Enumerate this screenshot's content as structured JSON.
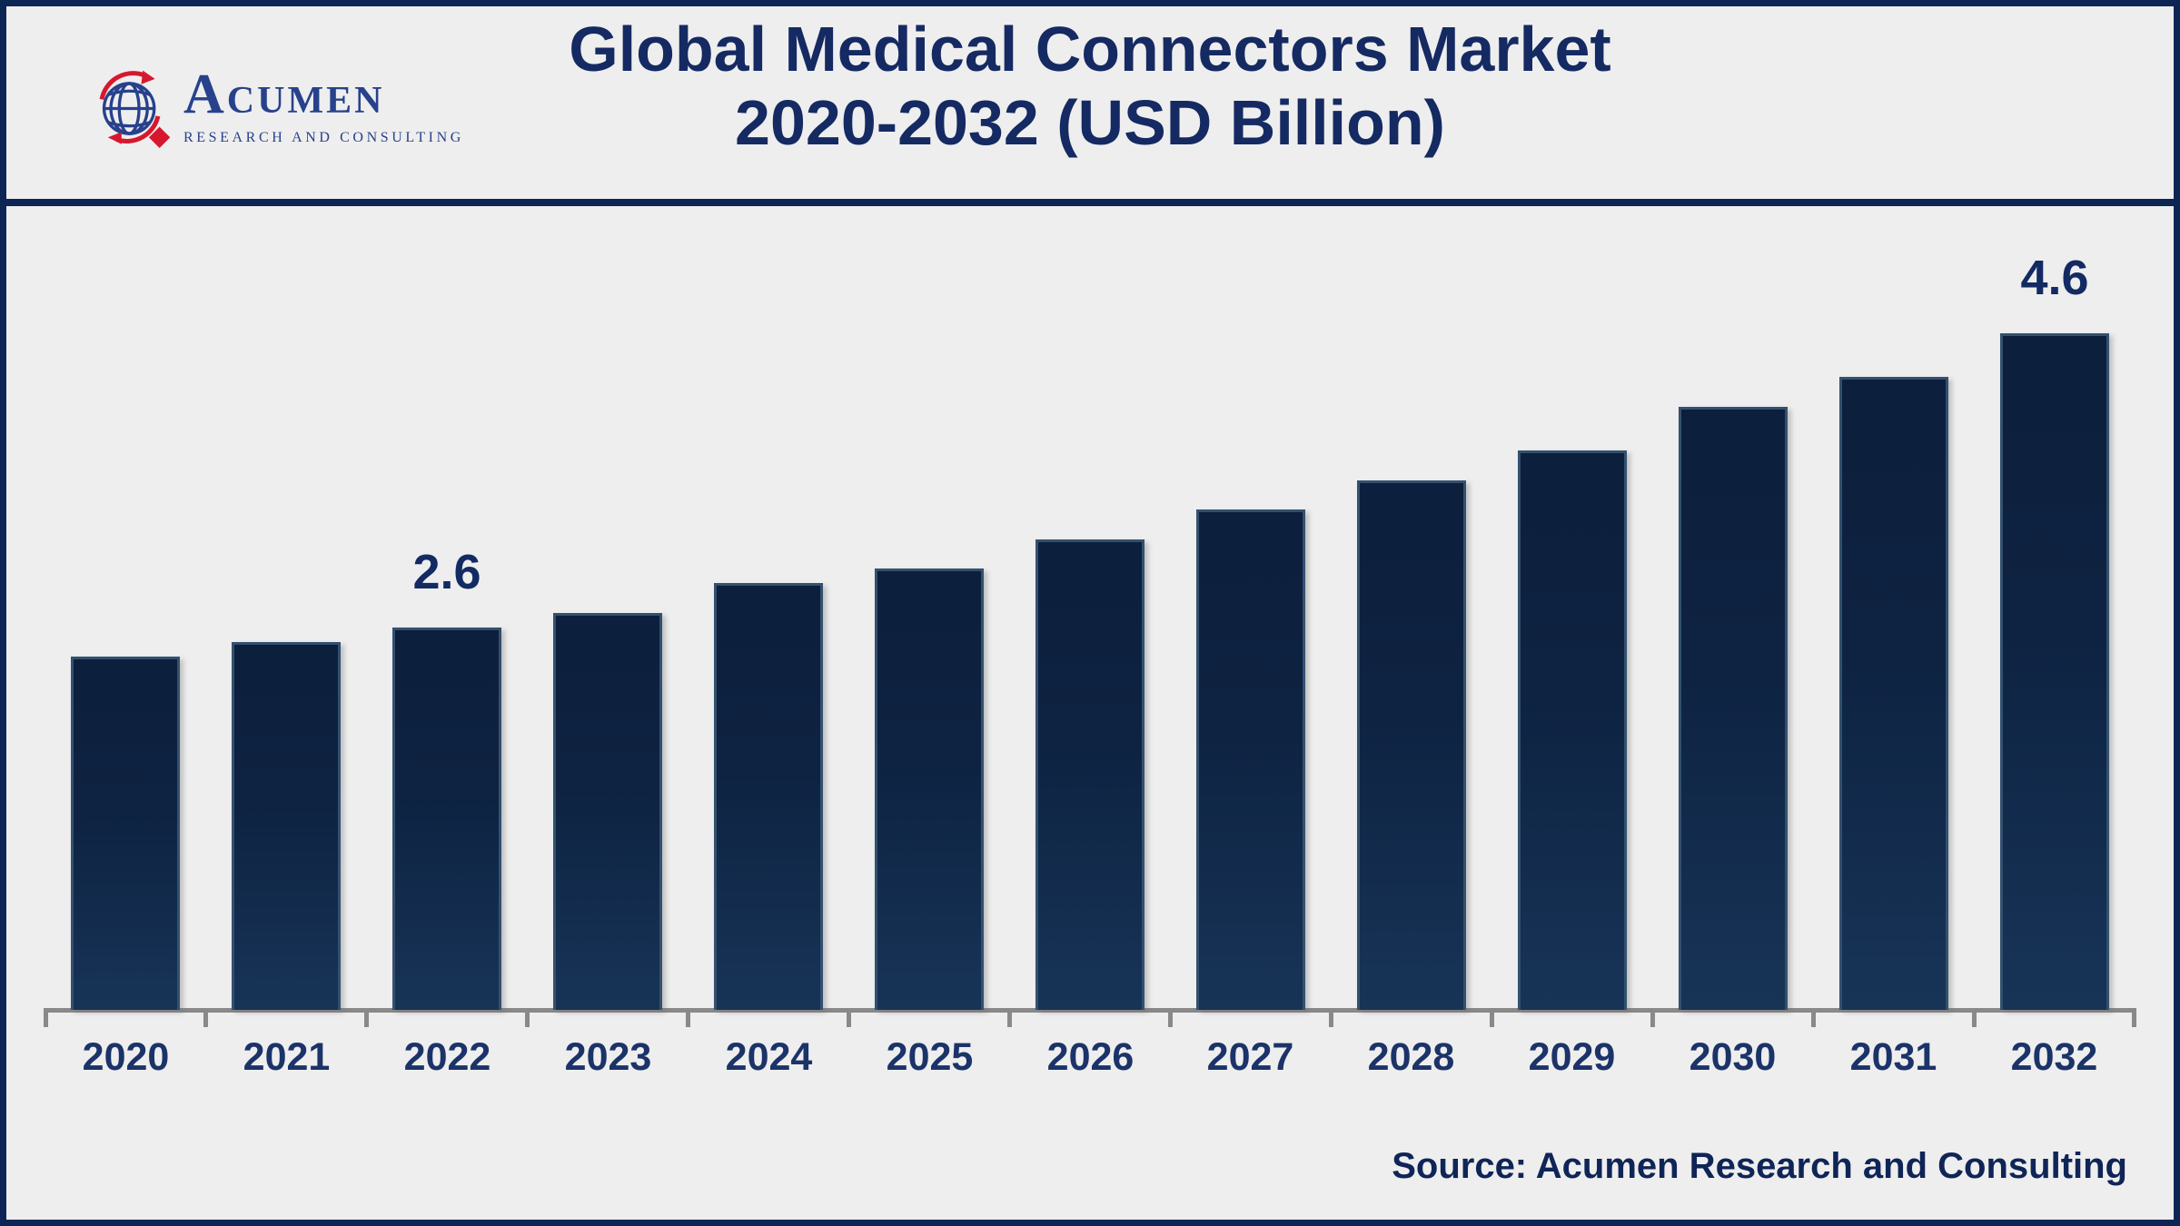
{
  "header": {
    "logo": {
      "name": "ACUMEN",
      "subtitle": "RESEARCH AND CONSULTING"
    },
    "title_line1": "Global Medical Connectors Market",
    "title_line2": "2020-2032 (USD Billion)"
  },
  "footer": {
    "source": "Source: Acumen Research and Consulting"
  },
  "chart_data": {
    "type": "bar",
    "title": "Global Medical Connectors Market 2020-2032 (USD Billion)",
    "unit": "USD Billion",
    "categories": [
      "2020",
      "2021",
      "2022",
      "2023",
      "2024",
      "2025",
      "2026",
      "2027",
      "2028",
      "2029",
      "2030",
      "2031",
      "2032"
    ],
    "values": [
      2.4,
      2.5,
      2.6,
      2.7,
      2.9,
      3.0,
      3.2,
      3.4,
      3.6,
      3.8,
      4.1,
      4.3,
      4.6
    ],
    "data_labels": {
      "2022": "2.6",
      "2032": "4.6"
    },
    "xlabel": "",
    "ylabel": "",
    "ylim": [
      0,
      5
    ],
    "y_axis_visible": false,
    "grid": false,
    "legend": "none"
  },
  "colors": {
    "background": "#eeeeee",
    "navy": "#0d2554",
    "title": "#152a62",
    "bar-top": "#0c1f3c",
    "bar-bottom": "#173457",
    "bar-edge": "#33506f",
    "axis": "#898989",
    "year-label": "#1b3368",
    "value-label": "#132a63",
    "source": "#0f2557",
    "logo-navy": "#27418c",
    "logo-red": "#d6182e"
  }
}
